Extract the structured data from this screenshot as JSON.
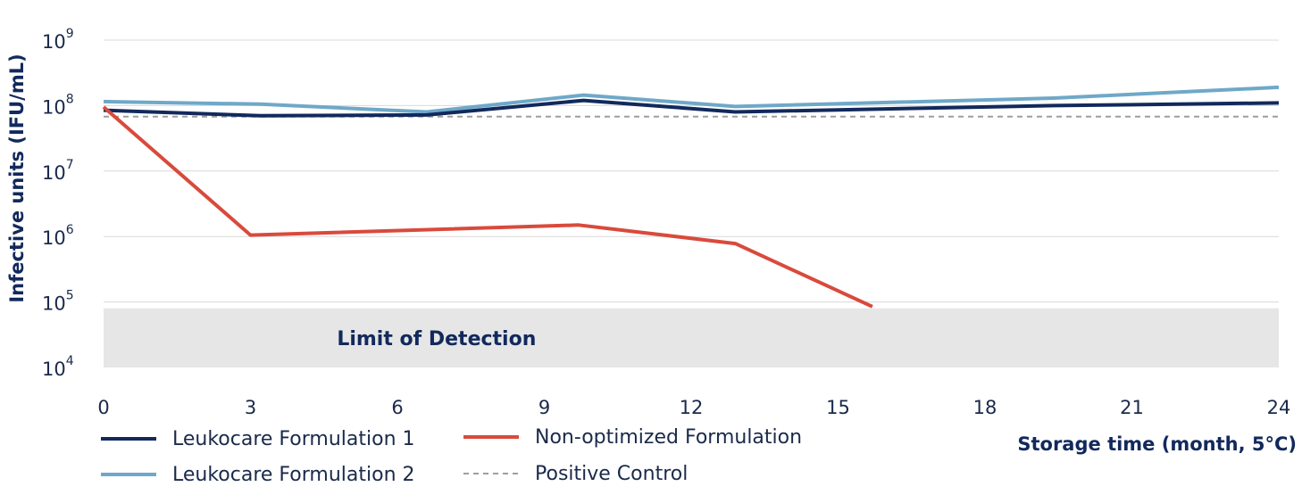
{
  "chart_data": {
    "type": "line",
    "xlabel": "Storage time (month, 5°C)",
    "ylabel": "Infective units (IFU/mL)",
    "x_ticks": [
      0,
      3,
      6,
      9,
      12,
      15,
      18,
      21,
      24
    ],
    "xlim": [
      0,
      24
    ],
    "y_scale": "log",
    "ylim": [
      10000,
      1000000000
    ],
    "y_ticks": [
      {
        "value": 10000,
        "base": "10",
        "exp": "4"
      },
      {
        "value": 100000,
        "base": "10",
        "exp": "5"
      },
      {
        "value": 1000000,
        "base": "10",
        "exp": "6"
      },
      {
        "value": 10000000,
        "base": "10",
        "exp": "7"
      },
      {
        "value": 100000000,
        "base": "10",
        "exp": "8"
      },
      {
        "value": 1000000000,
        "base": "10",
        "exp": "9"
      }
    ],
    "grid": true,
    "limit_of_detection": {
      "label": "Limit of Detection",
      "y_range": [
        10000,
        80000
      ],
      "color": "#e6e6e6"
    },
    "series": [
      {
        "name": "Leukocare Formulation 1",
        "color": "#12295c",
        "style": "solid",
        "x": [
          0,
          3.2,
          6.6,
          9.8,
          12.9,
          19.4,
          24
        ],
        "y": [
          85000000,
          70000000,
          72000000,
          120000000,
          80000000,
          100000000,
          110000000
        ]
      },
      {
        "name": "Leukocare Formulation 2",
        "color": "#6fa8c8",
        "style": "solid",
        "x": [
          0,
          3.2,
          6.6,
          9.8,
          12.9,
          19.4,
          24
        ],
        "y": [
          115000000,
          105000000,
          80000000,
          145000000,
          97000000,
          130000000,
          190000000
        ]
      },
      {
        "name": "Non-optimized Formulation",
        "color": "#d94a3c",
        "style": "solid",
        "x": [
          0,
          3.0,
          9.7,
          12.9,
          15.7
        ],
        "y": [
          95000000,
          1050000,
          1500000,
          780000,
          85000
        ]
      },
      {
        "name": "Positive Control",
        "color": "#9e9e9e",
        "style": "dashed",
        "x": [
          0,
          24
        ],
        "y": [
          68000000,
          68000000
        ]
      }
    ],
    "legend": {
      "placement": "bottom-left",
      "entries": [
        "Leukocare Formulation 1",
        "Non-optimized Formulation",
        "Leukocare Formulation 2",
        "Positive Control"
      ]
    }
  }
}
